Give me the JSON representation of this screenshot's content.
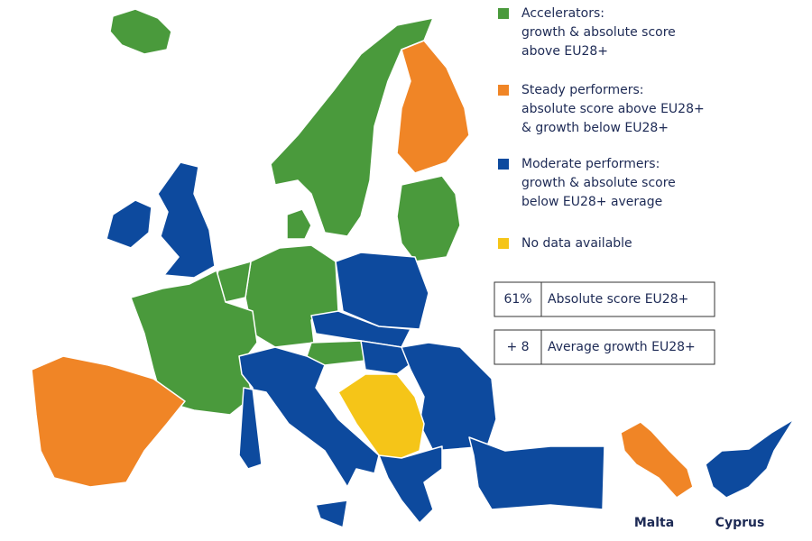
{
  "legend": [
    {
      "color": "#4a9a3c",
      "lines": [
        "Accelerators:",
        "growth & absolute score",
        "above EU28+"
      ]
    },
    {
      "color": "#f08526",
      "lines": [
        "Steady performers:",
        "absolute score above EU28+",
        "& growth below EU28+"
      ]
    },
    {
      "color": "#0d4a9e",
      "lines": [
        "Moderate performers:",
        "growth & absolute score",
        "below EU28+ average"
      ]
    },
    {
      "color": "#f5c518",
      "lines": [
        "No data available"
      ]
    }
  ],
  "boxes": [
    {
      "value": "61%",
      "label": "Absolute score EU28+"
    },
    {
      "value": "+ 8",
      "label": "Average growth EU28+"
    }
  ],
  "insets": [
    "Malta",
    "Cyprus"
  ]
}
